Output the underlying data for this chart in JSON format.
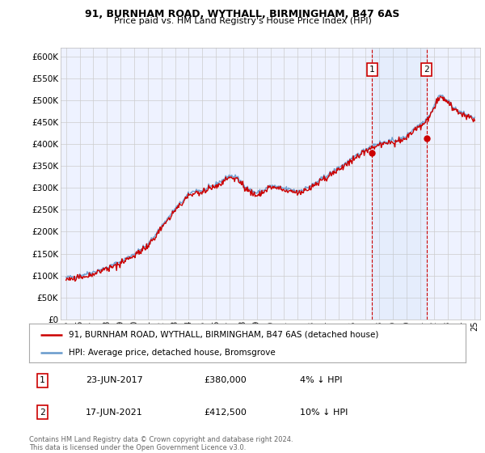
{
  "title": "91, BURNHAM ROAD, WYTHALL, BIRMINGHAM, B47 6AS",
  "subtitle": "Price paid vs. HM Land Registry's House Price Index (HPI)",
  "legend_line1": "91, BURNHAM ROAD, WYTHALL, BIRMINGHAM, B47 6AS (detached house)",
  "legend_line2": "HPI: Average price, detached house, Bromsgrove",
  "annotation1_date": "23-JUN-2017",
  "annotation1_price": "£380,000",
  "annotation1_hpi": "4% ↓ HPI",
  "annotation1_year": 2017.47,
  "annotation1_value": 380000,
  "annotation2_date": "17-JUN-2021",
  "annotation2_price": "£412,500",
  "annotation2_hpi": "10% ↓ HPI",
  "annotation2_year": 2021.46,
  "annotation2_value": 412500,
  "footer": "Contains HM Land Registry data © Crown copyright and database right 2024.\nThis data is licensed under the Open Government Licence v3.0.",
  "ylim": [
    0,
    620000
  ],
  "yticks": [
    0,
    50000,
    100000,
    150000,
    200000,
    250000,
    300000,
    350000,
    400000,
    450000,
    500000,
    550000,
    600000
  ],
  "color_red": "#cc0000",
  "color_blue": "#6699cc",
  "background_chart": "#eef2ff",
  "background_fig": "#ffffff",
  "grid_color": "#cccccc"
}
